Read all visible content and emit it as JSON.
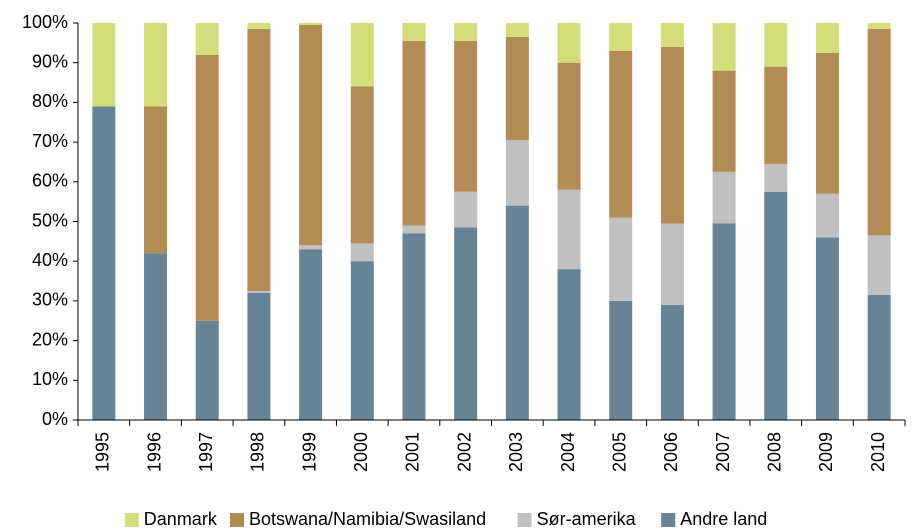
{
  "chart_data": {
    "type": "stacked_bar",
    "categories": [
      "1995",
      "1996",
      "1997",
      "1998",
      "1999",
      "2000",
      "2001",
      "2002",
      "2003",
      "2004",
      "2005",
      "2006",
      "2007",
      "2008",
      "2009",
      "2010"
    ],
    "series": [
      {
        "name": "Danmark",
        "color": "#d3dd7a",
        "values": [
          21,
          21,
          8,
          1.5,
          0.5,
          16,
          4.5,
          4.5,
          3.5,
          10,
          7,
          6,
          12,
          11,
          7.5,
          1.5
        ]
      },
      {
        "name": "Botswana/Namibia/Swasiland",
        "color": "#b38b55",
        "values": [
          0,
          37,
          67,
          66,
          55.5,
          39.5,
          46.5,
          38,
          26,
          32,
          42,
          44.5,
          25.5,
          24.5,
          35.5,
          52
        ]
      },
      {
        "name": "Sør-amerika",
        "color": "#c0c0c0",
        "values": [
          0,
          0,
          0,
          0.5,
          1,
          4.5,
          2,
          9,
          16.5,
          20,
          21,
          20.5,
          13,
          7,
          11,
          15
        ]
      },
      {
        "name": "Andre land",
        "color": "#668496",
        "values": [
          79,
          42,
          25,
          32,
          43,
          40,
          47,
          48.5,
          54,
          38,
          30,
          29,
          49.5,
          57.5,
          46,
          31.5
        ]
      }
    ],
    "ylim": [
      0,
      100
    ],
    "yticks": [
      {
        "value": 0,
        "label": "0%"
      },
      {
        "value": 10,
        "label": "10%"
      },
      {
        "value": 20,
        "label": "20%"
      },
      {
        "value": 30,
        "label": "30%"
      },
      {
        "value": 40,
        "label": "40%"
      },
      {
        "value": 50,
        "label": "50%"
      },
      {
        "value": 60,
        "label": "60%"
      },
      {
        "value": 70,
        "label": "70%"
      },
      {
        "value": 80,
        "label": "80%"
      },
      {
        "value": 90,
        "label": "90%"
      },
      {
        "value": 100,
        "label": "100%"
      }
    ],
    "grid": false,
    "legend": "bottom"
  }
}
